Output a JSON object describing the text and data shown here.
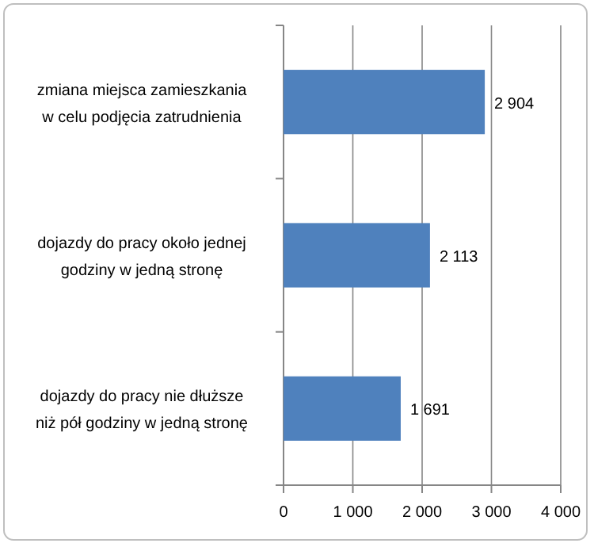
{
  "chart_data": {
    "type": "bar",
    "orientation": "horizontal",
    "categories": [
      "zmiana miejsca zamieszkania w celu podjęcia zatrudnienia",
      "dojazdy do pracy około jednej godziny w jedną stronę",
      "dojazdy do pracy nie dłuższe niż pół godziny w jedną stronę"
    ],
    "values": [
      2904,
      2113,
      1691
    ],
    "value_labels": [
      "2 904",
      "2 113",
      "1 691"
    ],
    "color": "#4f81bd",
    "xlim": [
      0,
      4000
    ],
    "xticks": [
      0,
      {
        "value": 1000,
        "label": "1 000"
      },
      {
        "value": 2000,
        "label": "2 000"
      },
      {
        "value": 3000,
        "label": "3 000"
      },
      {
        "value": 4000,
        "label": "4 000"
      }
    ],
    "grid": "x"
  }
}
